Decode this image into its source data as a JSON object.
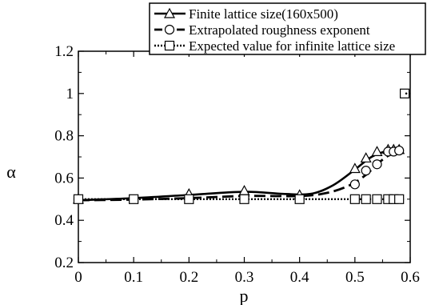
{
  "chart_data": {
    "type": "line",
    "title": "",
    "xlabel": "p",
    "ylabel": "α",
    "xlim": [
      0,
      0.6
    ],
    "ylim": [
      0.2,
      1.2
    ],
    "xticks": [
      0,
      0.1,
      0.2,
      0.3,
      0.4,
      0.5,
      0.6
    ],
    "xtick_labels": [
      "0",
      "0.1",
      "0.2",
      "0.3",
      "0.4",
      "0.5",
      "0.6"
    ],
    "yticks": [
      0.2,
      0.4,
      0.6,
      0.8,
      1.0,
      1.2
    ],
    "ytick_labels": [
      "0.2",
      "0.4",
      "0.6",
      "0.8",
      "1",
      "1.2"
    ],
    "grid": false,
    "legend_position": "top-right",
    "series": [
      {
        "name": "Finite lattice size(160x500)",
        "marker": "triangle",
        "line_style": "solid",
        "color": "#000000",
        "points": [
          [
            0,
            0.5
          ],
          [
            0.2,
            0.525
          ],
          [
            0.3,
            0.54
          ],
          [
            0.4,
            0.52
          ],
          [
            0.5,
            0.645
          ],
          [
            0.52,
            0.695
          ],
          [
            0.54,
            0.725
          ],
          [
            0.56,
            0.735
          ],
          [
            0.57,
            0.735
          ],
          [
            0.58,
            0.735
          ]
        ],
        "curve": [
          [
            0,
            0.495
          ],
          [
            0.1,
            0.505
          ],
          [
            0.2,
            0.52
          ],
          [
            0.3,
            0.535
          ],
          [
            0.37,
            0.525
          ],
          [
            0.42,
            0.525
          ],
          [
            0.46,
            0.565
          ],
          [
            0.5,
            0.64
          ],
          [
            0.53,
            0.7
          ],
          [
            0.56,
            0.73
          ],
          [
            0.58,
            0.735
          ]
        ]
      },
      {
        "name": "Extrapolated roughness exponent",
        "marker": "circle",
        "line_style": "dashed",
        "color": "#000000",
        "points": [
          [
            0,
            0.5
          ],
          [
            0.5,
            0.57
          ],
          [
            0.52,
            0.635
          ],
          [
            0.54,
            0.665
          ],
          [
            0.56,
            0.725
          ],
          [
            0.57,
            0.725
          ],
          [
            0.58,
            0.73
          ]
        ],
        "curve": [
          [
            0,
            0.495
          ],
          [
            0.1,
            0.498
          ],
          [
            0.2,
            0.505
          ],
          [
            0.3,
            0.515
          ],
          [
            0.4,
            0.515
          ],
          [
            0.45,
            0.53
          ],
          [
            0.49,
            0.565
          ],
          [
            0.52,
            0.615
          ],
          [
            0.54,
            0.665
          ],
          [
            0.56,
            0.705
          ],
          [
            0.58,
            0.725
          ]
        ]
      },
      {
        "name": "Expected value for infinite lattice size",
        "marker": "square",
        "line_style": "dotted",
        "color": "#000000",
        "points": [
          [
            0,
            0.5
          ],
          [
            0.1,
            0.5
          ],
          [
            0.2,
            0.5
          ],
          [
            0.3,
            0.5
          ],
          [
            0.4,
            0.5
          ],
          [
            0.5,
            0.5
          ],
          [
            0.52,
            0.5
          ],
          [
            0.54,
            0.5
          ],
          [
            0.56,
            0.5
          ],
          [
            0.57,
            0.5
          ],
          [
            0.58,
            0.5
          ],
          [
            0.59,
            1.0
          ]
        ],
        "curve": [
          [
            0,
            0.5
          ],
          [
            0.59,
            0.5
          ]
        ]
      }
    ]
  }
}
